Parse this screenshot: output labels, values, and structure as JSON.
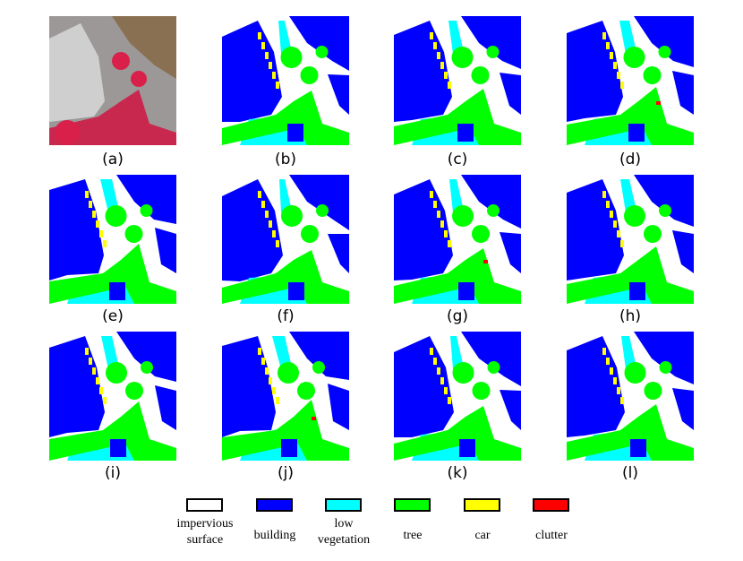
{
  "panels": [
    "(a)",
    "(b)",
    "(c)",
    "(d)",
    "(e)",
    "(f)",
    "(g)",
    "(h)",
    "(i)",
    "(j)",
    "(k)",
    "(l)"
  ],
  "legend": [
    {
      "label": [
        "impervious",
        "surface"
      ],
      "color": "#ffffff"
    },
    {
      "label": [
        "building"
      ],
      "color": "#0000ff"
    },
    {
      "label": [
        "low",
        "vegetation"
      ],
      "color": "#00ffff"
    },
    {
      "label": [
        "tree"
      ],
      "color": "#00ff00"
    },
    {
      "label": [
        "car"
      ],
      "color": "#ffff00"
    },
    {
      "label": [
        "clutter"
      ],
      "color": "#ff0000"
    }
  ]
}
